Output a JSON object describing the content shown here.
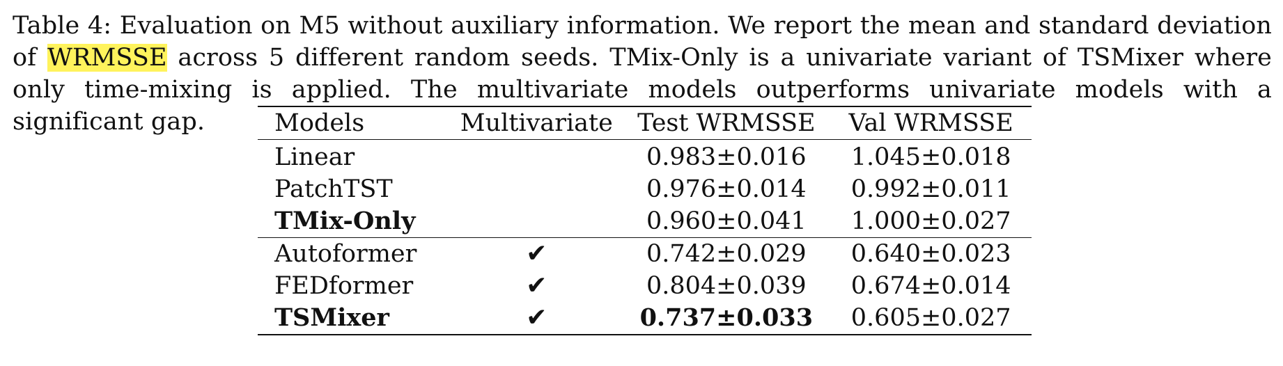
{
  "caption": {
    "prefix": "Table 4:",
    "text_before": " Evaluation on M5 without auxiliary information. We report the mean and standard deviation of ",
    "highlight": "WRMSSE",
    "text_after": " across 5 different random seeds. TMix-Only is a univariate variant of TSMixer where only time-mixing is applied. The multivariate models outperforms univariate models with a significant gap."
  },
  "table": {
    "headers": {
      "models": "Models",
      "multivariate": "Multivariate",
      "test": "Test WRMSSE",
      "val": "Val WRMSSE"
    },
    "check_glyph": "✔",
    "univariate_rows": [
      {
        "model": "Linear",
        "multivariate": "",
        "test": "0.983±0.016",
        "val": "1.045±0.018"
      },
      {
        "model": "PatchTST",
        "multivariate": "",
        "test": "0.976±0.014",
        "val": "0.992±0.011"
      },
      {
        "model": "TMix-Only",
        "multivariate": "",
        "test": "0.960±0.041",
        "val": "1.000±0.027"
      }
    ],
    "multivariate_rows": [
      {
        "model": "Autoformer",
        "multivariate": "✔",
        "test": "0.742±0.029",
        "val": "0.640±0.023"
      },
      {
        "model": "FEDformer",
        "multivariate": "✔",
        "test": "0.804±0.039",
        "val": "0.674±0.014"
      },
      {
        "model": "TSMixer",
        "multivariate": "✔",
        "test": "0.737±0.033",
        "val": "0.605±0.027"
      }
    ]
  }
}
